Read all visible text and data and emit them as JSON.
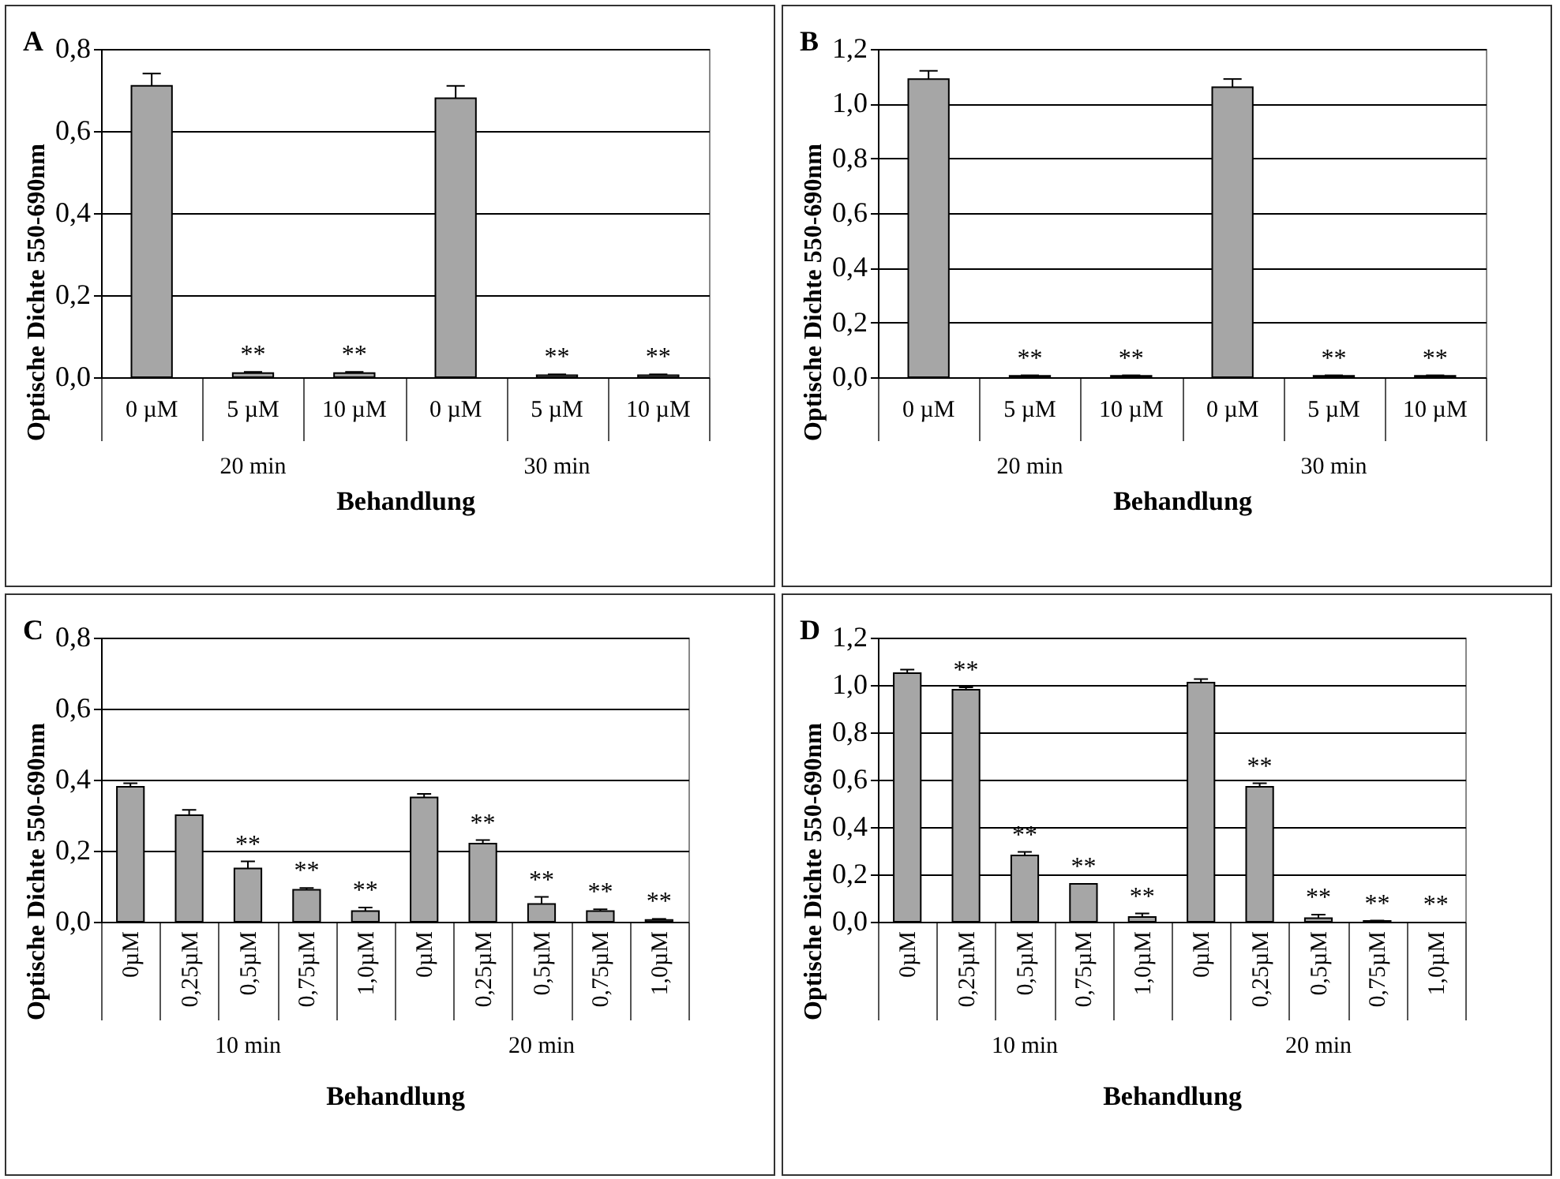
{
  "chart_data": [
    {
      "type": "bar",
      "title": "A",
      "xlabel": "Behandlung",
      "ylabel": "Optische Dichte 550-690nm",
      "categories": [
        "0 µM",
        "5 µM",
        "10 µM",
        "0 µM",
        "5 µM",
        "10 µM"
      ],
      "values": [
        0.71,
        0.01,
        0.01,
        0.68,
        0.005,
        0.005
      ],
      "errors": [
        0.03,
        0.003,
        0.003,
        0.03,
        0.002,
        0.002
      ],
      "value_labels": [
        null,
        "**",
        "**",
        null,
        "**",
        "**"
      ],
      "annotations": [
        "20 min",
        "30 min"
      ],
      "color": "#a6a6a6",
      "ylim": [
        0,
        0.8
      ],
      "yticks": [
        {
          "value": 0,
          "label": "0,0"
        },
        {
          "value": 0.2,
          "label": "0,2"
        },
        {
          "value": 0.4,
          "label": "0,4"
        },
        {
          "value": 0.6,
          "label": "0,6"
        },
        {
          "value": 0.8,
          "label": "0,8"
        }
      ],
      "grid": "y"
    },
    {
      "type": "bar",
      "title": "B",
      "xlabel": "Behandlung",
      "ylabel": "Optische Dichte 550-690nm",
      "categories": [
        "0 µM",
        "5 µM",
        "10 µM",
        "0 µM",
        "5 µM",
        "10 µM"
      ],
      "values": [
        1.09,
        0.005,
        0.005,
        1.06,
        0.005,
        0.005
      ],
      "errors": [
        0.03,
        0.002,
        0.002,
        0.03,
        0.002,
        0.002
      ],
      "value_labels": [
        null,
        "**",
        "**",
        null,
        "**",
        "**"
      ],
      "annotations": [
        "20 min",
        "30 min"
      ],
      "color": "#a6a6a6",
      "ylim": [
        0,
        1.2
      ],
      "yticks": [
        {
          "value": 0,
          "label": "0,0"
        },
        {
          "value": 0.2,
          "label": "0,2"
        },
        {
          "value": 0.4,
          "label": "0,4"
        },
        {
          "value": 0.6,
          "label": "0,6"
        },
        {
          "value": 0.8,
          "label": "0,8"
        },
        {
          "value": 1,
          "label": "1,0"
        },
        {
          "value": 1.2,
          "label": "1,2"
        }
      ],
      "grid": "y"
    },
    {
      "type": "bar",
      "title": "C",
      "xlabel": "Behandlung",
      "ylabel": "Optische Dichte 550-690nm",
      "categories": [
        "0µM",
        "0,25µM",
        "0,5µM",
        "0,75µM",
        "1,0µM",
        "0µM",
        "0,25µM",
        "0,5µM",
        "0,75µM",
        "1,0µM"
      ],
      "values": [
        0.38,
        0.3,
        0.15,
        0.09,
        0.03,
        0.35,
        0.22,
        0.05,
        0.03,
        0.005
      ],
      "errors": [
        0.01,
        0.015,
        0.02,
        0.005,
        0.01,
        0.01,
        0.01,
        0.02,
        0.005,
        0.003
      ],
      "value_labels": [
        null,
        null,
        "**",
        "**",
        "**",
        null,
        "**",
        "**",
        "**",
        "**"
      ],
      "annotations": [
        "10 min",
        "20 min"
      ],
      "color": "#a6a6a6",
      "ylim": [
        0,
        0.8
      ],
      "yticks": [
        {
          "value": 0,
          "label": "0,0"
        },
        {
          "value": 0.2,
          "label": "0,2"
        },
        {
          "value": 0.4,
          "label": "0,4"
        },
        {
          "value": 0.6,
          "label": "0,6"
        },
        {
          "value": 0.8,
          "label": "0,8"
        }
      ],
      "grid": "y"
    },
    {
      "type": "bar",
      "title": "D",
      "xlabel": "Behandlung",
      "ylabel": "Optische Dichte 550-690nm",
      "categories": [
        "0µM",
        "0,25µM",
        "0,5µM",
        "0,75µM",
        "1,0µM",
        "0µM",
        "0,25µM",
        "0,5µM",
        "0,75µM",
        "1,0µM"
      ],
      "values": [
        1.05,
        0.98,
        0.28,
        0.16,
        0.02,
        1.01,
        0.57,
        0.015,
        0.003,
        0
      ],
      "errors": [
        0.015,
        0.01,
        0.015,
        null,
        0.015,
        0.015,
        0.015,
        0.015,
        0.002,
        null
      ],
      "value_labels": [
        null,
        "**",
        "**",
        "**",
        "**",
        null,
        "**",
        "**",
        "**",
        "**"
      ],
      "annotations": [
        "10 min",
        "20 min"
      ],
      "color": "#a6a6a6",
      "ylim": [
        0,
        1.2
      ],
      "yticks": [
        {
          "value": 0,
          "label": "0,0"
        },
        {
          "value": 0.2,
          "label": "0,2"
        },
        {
          "value": 0.4,
          "label": "0,4"
        },
        {
          "value": 0.6,
          "label": "0,6"
        },
        {
          "value": 0.8,
          "label": "0,8"
        },
        {
          "value": 1,
          "label": "1,0"
        },
        {
          "value": 1.2,
          "label": "1,2"
        }
      ],
      "grid": "y"
    }
  ]
}
